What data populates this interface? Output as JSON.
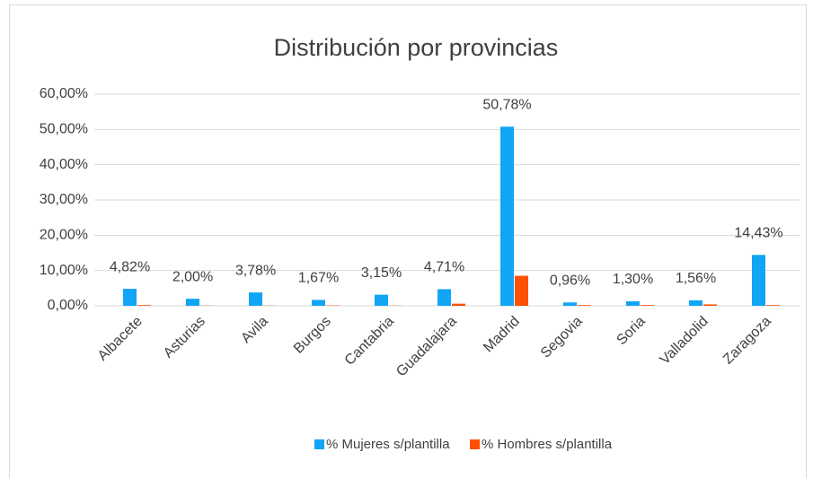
{
  "chart_data": {
    "type": "bar",
    "title": "Distribución por provincias",
    "categories": [
      "Albacete",
      "Asturias",
      "Avila",
      "Burgos",
      "Cantabria",
      "Guadalajara",
      "Madrid",
      "Segovia",
      "Soria",
      "Valladolid",
      "Zaragoza"
    ],
    "series": [
      {
        "name": "% Mujeres s/plantilla",
        "color": "#10a5f5",
        "values": [
          4.82,
          2.0,
          3.78,
          1.67,
          3.15,
          4.71,
          50.78,
          0.96,
          1.3,
          1.56,
          14.43
        ],
        "value_labels": [
          "4,82%",
          "2,00%",
          "3,78%",
          "1,67%",
          "3,15%",
          "4,71%",
          "50,78%",
          "0,96%",
          "1,30%",
          "1,56%",
          "14,43%"
        ]
      },
      {
        "name": "% Hombres s/plantilla",
        "color": "#fe5000",
        "values": [
          0.2,
          0.05,
          0.05,
          0.1,
          0.05,
          0.6,
          8.5,
          0.2,
          0.2,
          0.4,
          0.2
        ]
      }
    ],
    "ylim": [
      0,
      60
    ],
    "yticks": [
      {
        "value": 0,
        "label": "0,00%"
      },
      {
        "value": 10,
        "label": "10,00%"
      },
      {
        "value": 20,
        "label": "20,00%"
      },
      {
        "value": 30,
        "label": "30,00%"
      },
      {
        "value": 40,
        "label": "40,00%"
      },
      {
        "value": 50,
        "label": "50,00%"
      },
      {
        "value": 60,
        "label": "60,00%"
      }
    ],
    "grid": true,
    "legend": "bottom"
  }
}
